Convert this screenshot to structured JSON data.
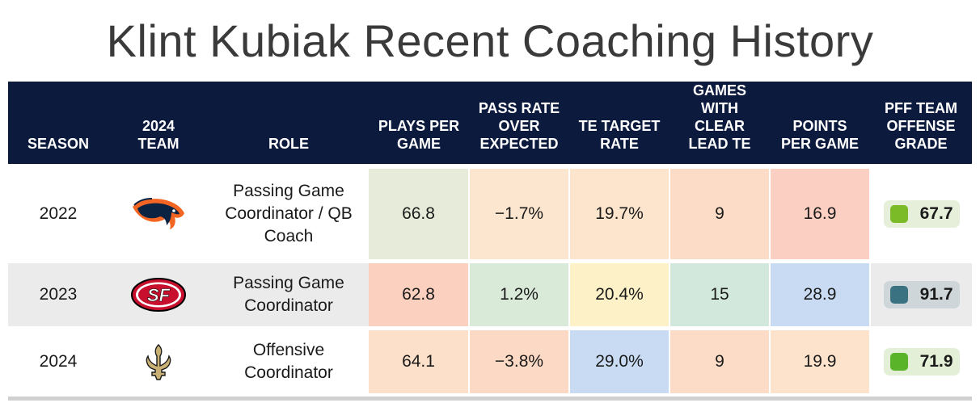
{
  "title": "Klint Kubiak Recent Coaching History",
  "headers": {
    "season": "SEASON",
    "team_line1": "2024",
    "team_line2": "TEAM",
    "role": "ROLE",
    "plays_line1": "PLAYS PER",
    "plays_line2": "GAME",
    "proe_line1": "PASS RATE",
    "proe_line2": "OVER",
    "proe_line3": "EXPECTED",
    "te_line1": "TE TARGET",
    "te_line2": "RATE",
    "games_line1": "GAMES",
    "games_line2": "WITH",
    "games_line3": "CLEAR",
    "games_line4": "LEAD TE",
    "points_line1": "POINTS",
    "points_line2": "PER GAME",
    "grade_line1": "PFF TEAM",
    "grade_line2": "OFFENSE",
    "grade_line3": "GRADE"
  },
  "rows": [
    {
      "season": "2022",
      "team_logo": "broncos-logo",
      "role_line1": "Passing Game",
      "role_line2": "Coordinator / QB",
      "role_line3": "Coach",
      "plays": "66.8",
      "proe": "−1.7%",
      "te_rate": "19.7%",
      "games_lead_te": "9",
      "points": "16.9",
      "grade": "67.7",
      "colors": {
        "plays": "#e6ecd9",
        "proe": "#fde6cf",
        "te_rate": "#fde5cd",
        "games_lead_te": "#fcdcc6",
        "points": "#fccfc3",
        "grade_bg": "#e6efd9",
        "grade_sq": "#7cbb28"
      }
    },
    {
      "season": "2023",
      "team_logo": "49ers-logo",
      "role_line1": "Passing Game",
      "role_line2": "Coordinator",
      "plays": "62.8",
      "proe": "1.2%",
      "te_rate": "20.4%",
      "games_lead_te": "15",
      "points": "28.9",
      "grade": "91.7",
      "colors": {
        "plays": "#fbd0bf",
        "proe": "#d9ead9",
        "te_rate": "#fcf1c7",
        "games_lead_te": "#d2e8dc",
        "points": "#c9dbf2",
        "grade_bg": "#cfd6da",
        "grade_sq": "#3b7282"
      }
    },
    {
      "season": "2024",
      "team_logo": "saints-logo",
      "role_line1": "Offensive",
      "role_line2": "Coordinator",
      "plays": "64.1",
      "proe": "−3.8%",
      "te_rate": "29.0%",
      "games_lead_te": "9",
      "points": "19.9",
      "grade": "71.9",
      "colors": {
        "plays": "#fde0ca",
        "proe": "#fcd9c4",
        "te_rate": "#c9dbf2",
        "games_lead_te": "#fcdcc6",
        "points": "#fde2cc",
        "grade_bg": "#e3efd6",
        "grade_sq": "#5ab42a"
      }
    }
  ]
}
